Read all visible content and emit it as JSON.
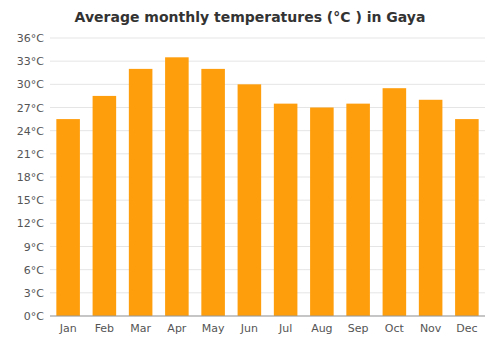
{
  "chart_data": {
    "type": "bar",
    "title": "Average monthly temperatures (°C ) in Gaya",
    "categories": [
      "Jan",
      "Feb",
      "Mar",
      "Apr",
      "May",
      "Jun",
      "Jul",
      "Aug",
      "Sep",
      "Oct",
      "Nov",
      "Dec"
    ],
    "values": [
      25.5,
      28.5,
      32.0,
      33.5,
      32.0,
      30.0,
      27.5,
      27.0,
      27.5,
      29.5,
      28.0,
      25.5
    ],
    "color": "#ff9e0d",
    "ylim": [
      0,
      36
    ],
    "yticks": [
      {
        "value": 0,
        "label": "0°C"
      },
      {
        "value": 3,
        "label": "3°C"
      },
      {
        "value": 6,
        "label": "6°C"
      },
      {
        "value": 9,
        "label": "9°C"
      },
      {
        "value": 12,
        "label": "12°C"
      },
      {
        "value": 15,
        "label": "15°C"
      },
      {
        "value": 18,
        "label": "18°C"
      },
      {
        "value": 21,
        "label": "21°C"
      },
      {
        "value": 24,
        "label": "24°C"
      },
      {
        "value": 27,
        "label": "27°C"
      },
      {
        "value": 30,
        "label": "30°C"
      },
      {
        "value": 33,
        "label": "33°C"
      },
      {
        "value": 36,
        "label": "36°C"
      }
    ],
    "grid": true
  }
}
